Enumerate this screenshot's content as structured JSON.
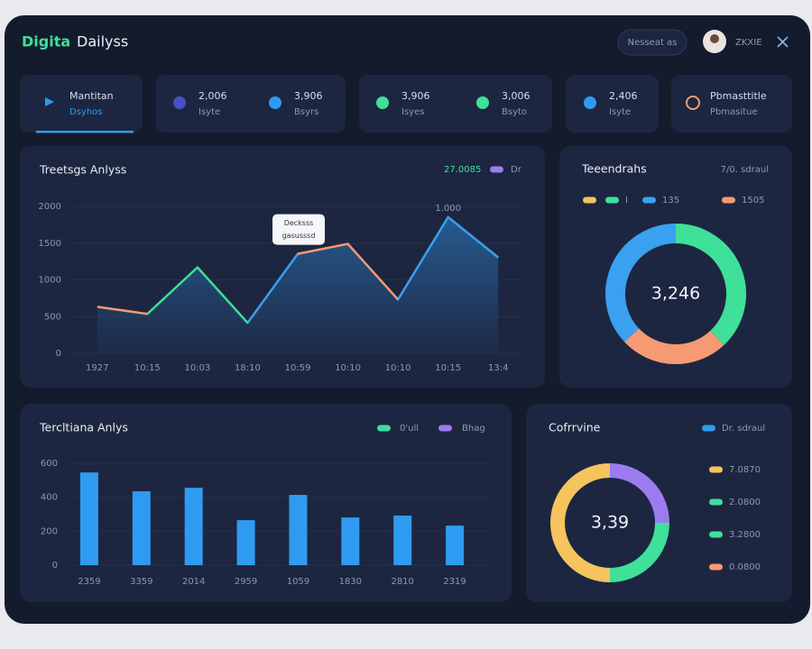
{
  "header": {
    "brand_1": "Digita",
    "brand_2": "Dailyss",
    "button": "Nesseat as",
    "user": "ZKXIE"
  },
  "stats": [
    {
      "value": "Mantitan",
      "label": "Dsyhos"
    },
    {
      "items": [
        {
          "value": "2,006",
          "label": "Isyte",
          "color": "#4b4fc6"
        },
        {
          "value": "3,906",
          "label": "Bsyrs",
          "color": "#2f9bf0"
        }
      ]
    },
    {
      "items": [
        {
          "value": "3,906",
          "label": "Isyes",
          "color": "#3ee09a"
        },
        {
          "value": "3,006",
          "label": "Bsyto",
          "color": "#3ee09a"
        }
      ]
    },
    {
      "items": [
        {
          "value": "2,406",
          "label": "Isyte",
          "color": "#2f9bf0"
        }
      ]
    },
    {
      "value": "Pbmasttitle",
      "label": "Pbmasitue",
      "color": "#f59a72"
    }
  ],
  "chart_data": [
    {
      "type": "line",
      "title": "Treetsgs Anlyss",
      "legend": [
        {
          "label": "27.0085",
          "color": "#3ee09a"
        },
        {
          "label": "Dr",
          "color": "#9b7cf0"
        }
      ],
      "categories": [
        "1927",
        "10:15",
        "10:03",
        "18:10",
        "10:59",
        "10:10",
        "10:10",
        "10:15",
        "13:4"
      ],
      "values": [
        634,
        537,
        1170,
        415,
        1354,
        1490,
        732,
        1854,
        1305
      ],
      "segment_colors": [
        "#f59a72",
        "#3ee09a",
        "#3ee09a",
        "#3aa0f0",
        "#f59a72",
        "#f59a72",
        "#3aa0f0",
        "#3aa0f0"
      ],
      "fill": "#2f9bf0",
      "ylim": [
        0,
        2000
      ],
      "yticks": [
        0,
        500,
        1000,
        1500,
        2000
      ],
      "tooltip": [
        "Decksss",
        "gasusssd"
      ],
      "peak_label": "1.000"
    },
    {
      "type": "pie",
      "title": "Teeendrahs",
      "subtitle": "7/0. sdraul",
      "legend": [
        {
          "color": "#f5c45e"
        },
        {
          "color": "#3ee09a",
          "label": "I"
        },
        {
          "color": "#3aa0f0",
          "label": "135"
        },
        {
          "color": "#f59a72",
          "label": "1505"
        }
      ],
      "values": [
        38,
        25,
        37
      ],
      "colors": [
        "#3ee09a",
        "#f59a72",
        "#3aa0f0"
      ],
      "center_label": "3,246"
    },
    {
      "type": "bar",
      "title": "Tercltiana Anlys",
      "legend": [
        {
          "label": "0'ull",
          "color": "#3ee09a"
        },
        {
          "label": "Bhag",
          "color": "#9b7cf0"
        }
      ],
      "categories": [
        "2359",
        "3359",
        "2014",
        "2959",
        "1059",
        "1830",
        "2810",
        "2319"
      ],
      "values": [
        546,
        435,
        456,
        265,
        414,
        281,
        292,
        233
      ],
      "color": "#2f9bf0",
      "ylim": [
        0,
        600
      ],
      "yticks": [
        0,
        200,
        400,
        600
      ]
    },
    {
      "type": "pie",
      "title": "Cofrrvine",
      "subtitle": "Dr. sdraul",
      "subtitle_color": "#2f9bf0",
      "values": [
        25,
        25,
        50
      ],
      "colors": [
        "#9b7cf0",
        "#3ee09a",
        "#f5c45e"
      ],
      "center_label": "3,39",
      "legend": [
        {
          "color": "#f5c45e",
          "label": "7.0870"
        },
        {
          "color": "#3ee09a",
          "label": "2.0800"
        },
        {
          "color": "#3ee09a",
          "label": "3.2800"
        },
        {
          "color": "#f59a72",
          "label": "0.0800"
        }
      ]
    }
  ]
}
